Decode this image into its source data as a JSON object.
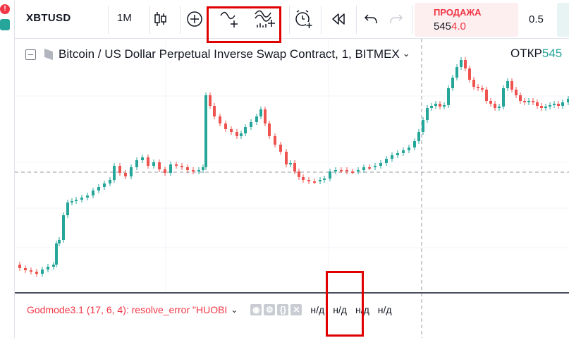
{
  "app": {
    "left_badge": "!"
  },
  "toolbar": {
    "symbol": "XBTUSD",
    "interval": "1М",
    "icons": [
      "candles-icon",
      "plus-circle-icon",
      "compare-icon",
      "indicators-icon",
      "alert-icon",
      "replay-icon",
      "undo-icon",
      "redo-icon"
    ]
  },
  "trade": {
    "sell_label": "ПРОДАЖА",
    "sell_price_prefix": "545",
    "sell_price_highlight": "4.0",
    "spread": "0.5"
  },
  "legend": {
    "title": "Bitcoin / US Dollar Perpetual Inverse Swap Contract, 1, BITMEX",
    "ohlc_label": "ОТКР",
    "ohlc_value": "545"
  },
  "indicator": {
    "title": "Godmode3.1 (17, 6, 4): resolve_error \"HUOBI",
    "values": [
      "н/д",
      "н/д",
      "н/д",
      "н/д"
    ]
  },
  "colors": {
    "up": "#26a69a",
    "down": "#ef5350",
    "highlight": "#e00000"
  }
}
